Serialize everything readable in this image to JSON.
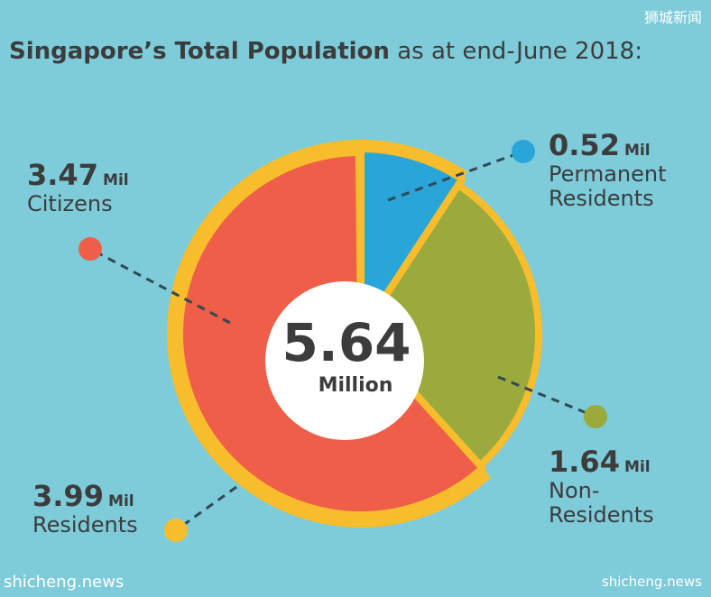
{
  "watermarks": {
    "top_right": "狮城新闻",
    "bottom_left": "shicheng.news",
    "bottom_right": "shicheng.news"
  },
  "chart_data": {
    "type": "pie",
    "title_bold": "Singapore’s Total Population",
    "title_rest": " as at end-June 2018:",
    "center": {
      "value": "5.64",
      "unit": "Million"
    },
    "total": 5.64,
    "slices": [
      {
        "value": 0.52,
        "value_text": "0.52",
        "unit": "Mil",
        "label_lines": [
          "Permanent",
          "Residents"
        ],
        "color": "#2aa5d8"
      },
      {
        "value": 1.64,
        "value_text": "1.64",
        "unit": "Mil",
        "label_lines": [
          "Non-",
          "Residents"
        ],
        "color": "#9aaa3c"
      },
      {
        "value": 3.47,
        "value_text": "3.47",
        "unit": "Mil",
        "label_lines": [
          "Citizens"
        ],
        "color": "#ee5e48"
      }
    ],
    "group": {
      "value": 3.99,
      "value_text": "3.99",
      "unit": "Mil",
      "label": "Residents",
      "color": "#f8bd2c"
    }
  }
}
